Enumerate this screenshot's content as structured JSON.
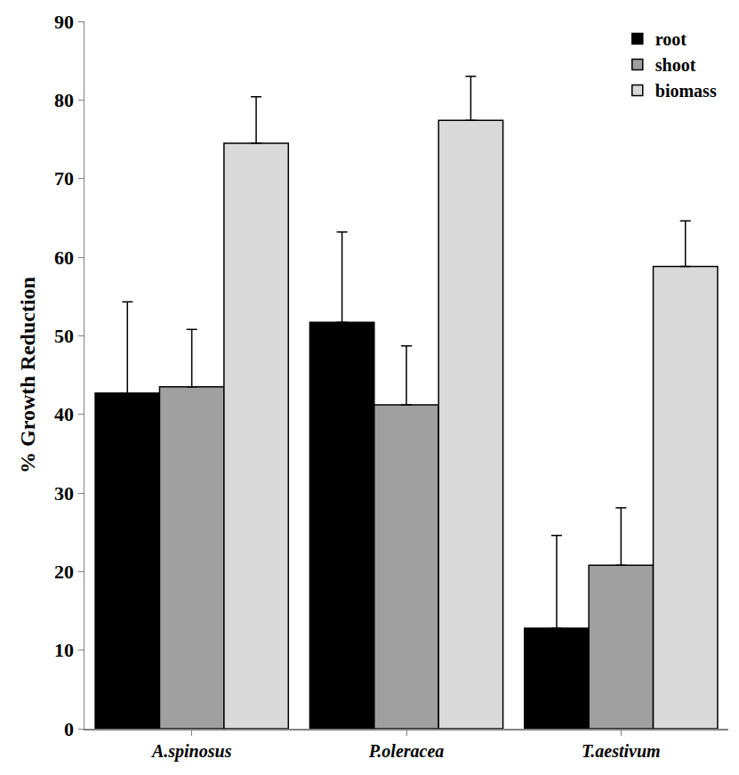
{
  "chart_data": {
    "type": "bar",
    "y_label": "% Growth Reduction",
    "categories": [
      "A.spinosus",
      "P.oleracea",
      "T.aestivum"
    ],
    "series": [
      {
        "name": "root",
        "color": "#000000",
        "values": [
          42.7,
          51.7,
          12.8
        ],
        "errors": [
          11.6,
          11.5,
          11.8
        ]
      },
      {
        "name": "shoot",
        "color": "#a0a0a0",
        "values": [
          43.5,
          41.2,
          20.8
        ],
        "errors": [
          7.3,
          7.5,
          7.3
        ]
      },
      {
        "name": "biomass",
        "color": "#d9d9d9",
        "values": [
          74.5,
          77.4,
          58.8
        ],
        "errors": [
          5.9,
          5.6,
          5.8
        ]
      }
    ],
    "ylim": [
      0,
      90
    ],
    "yticks": [
      0,
      10,
      20,
      30,
      40,
      50,
      60,
      70,
      80,
      90
    ],
    "grid": false,
    "legend": "upper right"
  }
}
